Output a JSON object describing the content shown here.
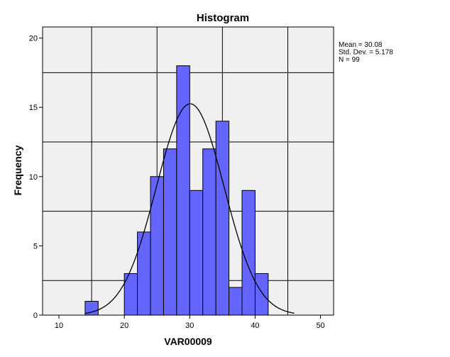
{
  "chart_data": {
    "type": "bar",
    "title": "Histogram",
    "xlabel": "VAR00009",
    "ylabel": "Frequency",
    "xlim": [
      7.5,
      52
    ],
    "ylim": [
      0,
      20.8
    ],
    "xticks": [
      10,
      20,
      30,
      40,
      50
    ],
    "yticks": [
      0,
      5,
      10,
      15,
      20
    ],
    "y_gridlines": [
      2.5,
      7.5,
      12.5,
      17.5
    ],
    "x_gridlines": [
      15,
      25,
      35,
      45
    ],
    "bin_width": 2,
    "bins": [
      {
        "start": 14,
        "end": 16,
        "count": 1
      },
      {
        "start": 20,
        "end": 22,
        "count": 3
      },
      {
        "start": 22,
        "end": 24,
        "count": 6
      },
      {
        "start": 24,
        "end": 26,
        "count": 10
      },
      {
        "start": 26,
        "end": 28,
        "count": 12
      },
      {
        "start": 28,
        "end": 30,
        "count": 18
      },
      {
        "start": 30,
        "end": 32,
        "count": 9
      },
      {
        "start": 32,
        "end": 34,
        "count": 12
      },
      {
        "start": 34,
        "end": 36,
        "count": 14
      },
      {
        "start": 36,
        "end": 38,
        "count": 2
      },
      {
        "start": 38,
        "end": 40,
        "count": 9
      },
      {
        "start": 40,
        "end": 42,
        "count": 3
      }
    ],
    "normal_curve": {
      "mean": 30.08,
      "std": 5.178,
      "n": 99
    },
    "stats_lines": [
      "Mean = 30.08",
      "Std. Dev. = 5.178",
      "N = 99"
    ],
    "colors": {
      "bar_fill": "#6464ff",
      "bar_stroke": "#000000",
      "plot_bg": "#f0f0f0",
      "grid": "#000000",
      "curve": "#000000"
    }
  }
}
